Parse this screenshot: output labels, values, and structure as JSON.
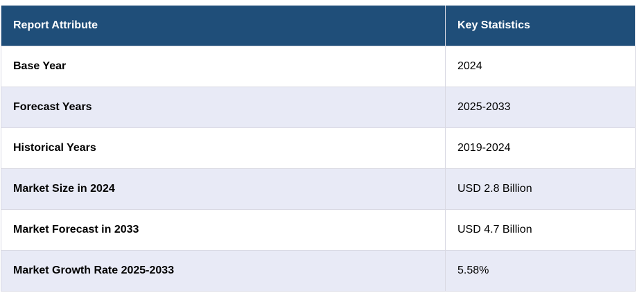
{
  "table": {
    "headers": [
      "Report Attribute",
      "Key Statistics"
    ],
    "rows": [
      {
        "attribute": "Base Year",
        "value": "2024"
      },
      {
        "attribute": "Forecast Years",
        "value": "2025-2033"
      },
      {
        "attribute": "Historical Years",
        "value": "2019-2024"
      },
      {
        "attribute": "Market Size in 2024",
        "value": "USD 2.8 Billion"
      },
      {
        "attribute": "Market Forecast in 2033",
        "value": "USD 4.7 Billion"
      },
      {
        "attribute": "Market Growth Rate 2025-2033",
        "value": "5.58%"
      }
    ]
  },
  "colors": {
    "header_bg": "#1f4e79",
    "header_text": "#ffffff",
    "row_alt_bg": "#e8eaf6",
    "row_bg": "#ffffff",
    "border": "#d9d9e3"
  }
}
